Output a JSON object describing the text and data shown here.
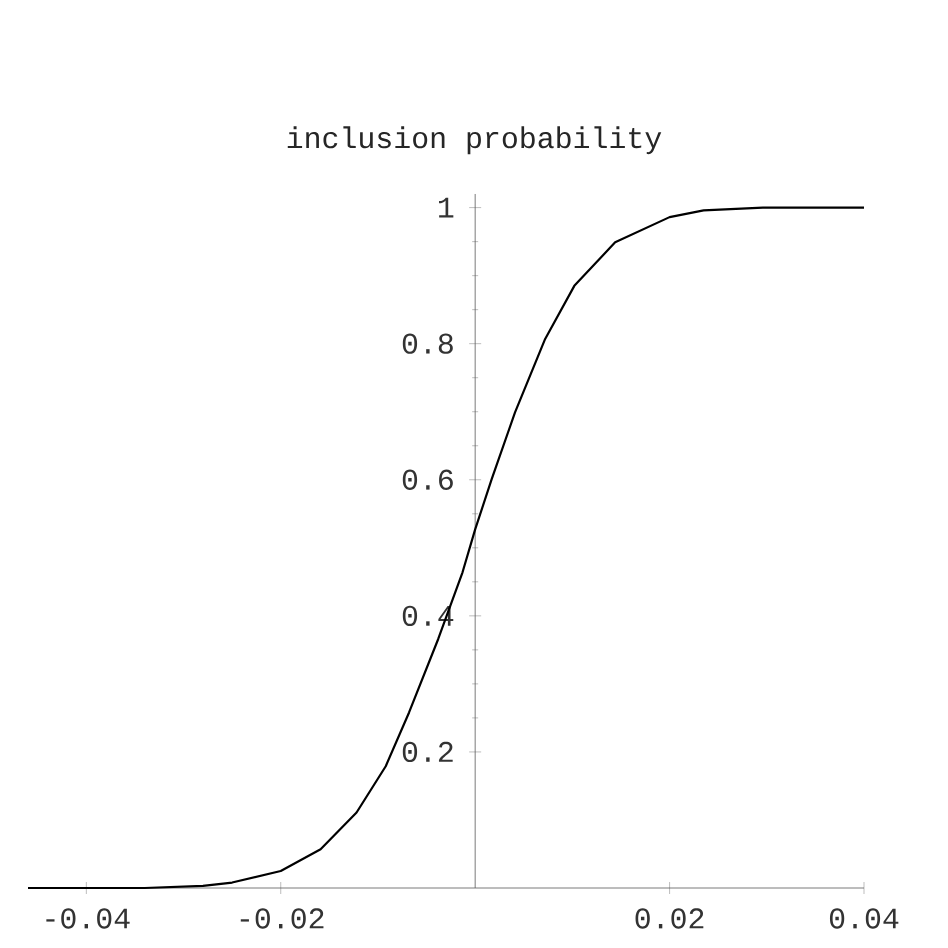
{
  "chart_data": {
    "type": "line",
    "title": "inclusion probability",
    "x": [
      -0.046,
      -0.034,
      -0.028,
      -0.025,
      -0.02,
      -0.0159,
      -0.0122,
      -0.0092,
      -0.0068,
      -0.0038,
      -0.0013,
      0,
      0.0017,
      0.0041,
      0.0072,
      0.0102,
      0.0144,
      0.02,
      0.0235,
      0.0296,
      0.04
    ],
    "values": [
      0,
      0,
      0.003,
      0.008,
      0.025,
      0.057,
      0.111,
      0.179,
      0.258,
      0.366,
      0.464,
      0.527,
      0.601,
      0.699,
      0.807,
      0.885,
      0.949,
      0.986,
      0.996,
      1.0,
      1.0
    ],
    "color": "#000000",
    "marker": "none",
    "line_style": "solid",
    "xlim": [
      -0.046,
      0.04
    ],
    "ylim": [
      0,
      1.02
    ],
    "xticks": [
      -0.04,
      -0.02,
      0.02,
      0.04
    ],
    "yticks": [
      0.2,
      0.4,
      0.6,
      0.8,
      1
    ]
  }
}
